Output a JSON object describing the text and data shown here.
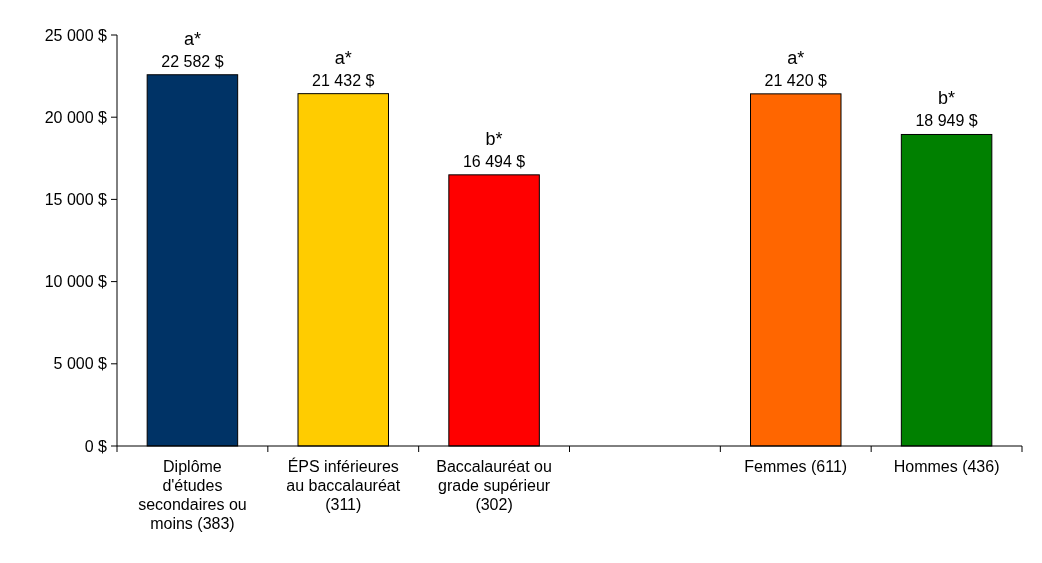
{
  "chart_data": {
    "type": "bar",
    "categories": [
      "Diplôme d'études secondaires ou moins (383)",
      "ÉPS inférieures au baccalauréat (311)",
      "Baccalauréat ou grade supérieur (302)",
      null,
      "Femmes (611)",
      "Hommes (436)"
    ],
    "values": [
      22582,
      21432,
      16494,
      null,
      21420,
      18949
    ],
    "colors": [
      "#003366",
      "#ffcc00",
      "#ff0000",
      null,
      "#ff6600",
      "#008000"
    ],
    "value_labels": [
      "22 582 $",
      "21 432 $",
      "16 494 $",
      null,
      "21 420 $",
      "18 949 $"
    ],
    "annotations": [
      {
        "text": "a*",
        "x": "Diplôme d'études secondaires ou moins (383)",
        "y": 22582
      },
      {
        "text": "a*",
        "x": "ÉPS inférieures au baccalauréat (311)",
        "y": 21432
      },
      {
        "text": "b*",
        "x": "Baccalauréat ou grade supérieur (302)",
        "y": 16494
      },
      {
        "text": "a*",
        "x": "Femmes (611)",
        "y": 21420
      },
      {
        "text": "b*",
        "x": "Hommes (436)",
        "y": 18949
      }
    ],
    "ylim": [
      0,
      25000
    ],
    "yticks": [
      {
        "value": 0,
        "label": "0 $"
      },
      {
        "value": 5000,
        "label": "5 000 $"
      },
      {
        "value": 10000,
        "label": "10 000 $"
      },
      {
        "value": 15000,
        "label": "15 000 $"
      },
      {
        "value": 20000,
        "label": "20 000 $"
      },
      {
        "value": 25000,
        "label": "25 000 $"
      }
    ],
    "grid": false
  }
}
